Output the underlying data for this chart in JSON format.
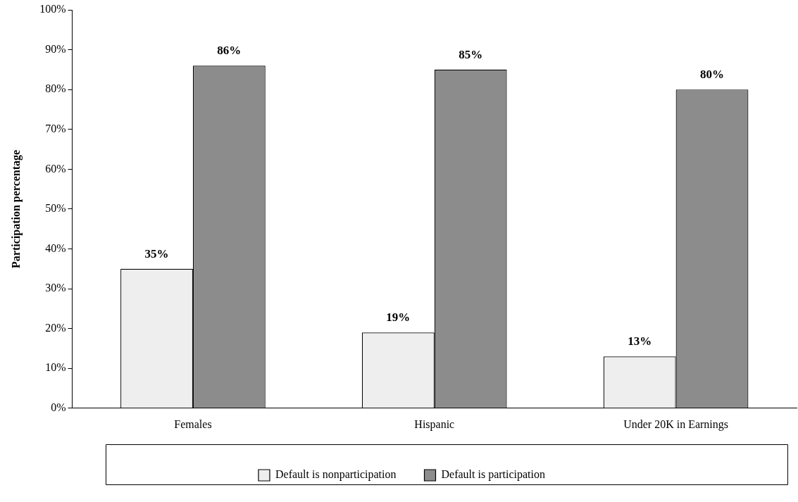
{
  "chart_data": {
    "type": "bar",
    "ylabel": "Participation percentage",
    "categories": [
      "Females",
      "Hispanic",
      "Under 20K in Earnings"
    ],
    "series": [
      {
        "name": "Default is nonparticipation",
        "color": "#eeeeee",
        "values": [
          35,
          19,
          13
        ],
        "value_labels": [
          "35%",
          "19%",
          "13%"
        ]
      },
      {
        "name": "Default is participation",
        "color": "#8c8c8c",
        "values": [
          86,
          85,
          80
        ],
        "value_labels": [
          "86%",
          "85%",
          "80%"
        ]
      }
    ],
    "ylim": [
      0,
      100
    ],
    "yticks": [
      {
        "value": 0,
        "label": "0%"
      },
      {
        "value": 10,
        "label": "10%"
      },
      {
        "value": 20,
        "label": "20%"
      },
      {
        "value": 30,
        "label": "30%"
      },
      {
        "value": 40,
        "label": "40%"
      },
      {
        "value": 50,
        "label": "50%"
      },
      {
        "value": 60,
        "label": "60%"
      },
      {
        "value": 70,
        "label": "70%"
      },
      {
        "value": 80,
        "label": "80%"
      },
      {
        "value": 90,
        "label": "90%"
      },
      {
        "value": 100,
        "label": "100%"
      }
    ],
    "grid": false,
    "legend": "bottom"
  }
}
